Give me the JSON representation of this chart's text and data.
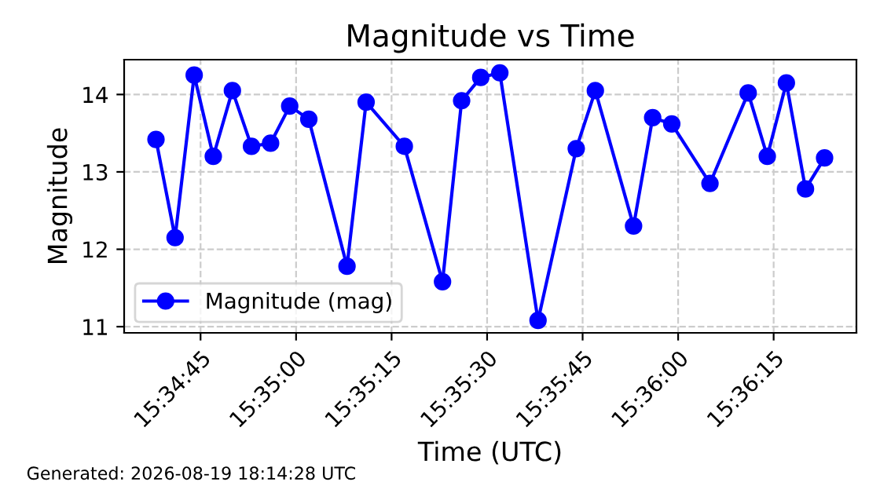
{
  "chart_data": {
    "type": "line",
    "title": "Magnitude vs Time",
    "xlabel": "Time (UTC)",
    "ylabel": "Magnitude",
    "x": [
      "2026-08-19T15:34:38",
      "2026-08-19T15:34:41",
      "2026-08-19T15:34:44",
      "2026-08-19T15:34:47",
      "2026-08-19T15:34:50",
      "2026-08-19T15:34:53",
      "2026-08-19T15:34:56",
      "2026-08-19T15:34:59",
      "2026-08-19T15:35:02",
      "2026-08-19T15:35:08",
      "2026-08-19T15:35:11",
      "2026-08-19T15:35:17",
      "2026-08-19T15:35:23",
      "2026-08-19T15:35:26",
      "2026-08-19T15:35:29",
      "2026-08-19T15:35:32",
      "2026-08-19T15:35:38",
      "2026-08-19T15:35:44",
      "2026-08-19T15:35:47",
      "2026-08-19T15:35:53",
      "2026-08-19T15:35:56",
      "2026-08-19T15:35:59",
      "2026-08-19T15:36:05",
      "2026-08-19T15:36:11",
      "2026-08-19T15:36:14",
      "2026-08-19T15:36:17",
      "2026-08-19T15:36:20",
      "2026-08-19T15:36:23"
    ],
    "series": [
      {
        "name": "Magnitude (mag)",
        "color": "#0000ff",
        "values": [
          13.42,
          12.15,
          14.25,
          13.2,
          14.05,
          13.33,
          13.37,
          13.85,
          13.68,
          11.78,
          13.9,
          13.33,
          11.58,
          13.92,
          14.22,
          14.28,
          11.08,
          13.3,
          14.05,
          12.3,
          13.7,
          13.62,
          12.85,
          14.02,
          13.2,
          14.15,
          12.78,
          13.18
        ]
      }
    ],
    "xlim": [
      "2026-08-19T15:34:33",
      "2026-08-19T15:36:28"
    ],
    "xticks": [
      {
        "value": "2026-08-19T15:34:45",
        "label": "15:34:45"
      },
      {
        "value": "2026-08-19T15:35:00",
        "label": "15:35:00"
      },
      {
        "value": "2026-08-19T15:35:15",
        "label": "15:35:15"
      },
      {
        "value": "2026-08-19T15:35:30",
        "label": "15:35:30"
      },
      {
        "value": "2026-08-19T15:35:45",
        "label": "15:35:45"
      },
      {
        "value": "2026-08-19T15:36:00",
        "label": "15:36:00"
      },
      {
        "value": "2026-08-19T15:36:15",
        "label": "15:36:15"
      }
    ],
    "ylim": [
      10.92,
      14.45
    ],
    "yticks": [
      11,
      12,
      13,
      14
    ],
    "grid": true,
    "legend": "bottom left",
    "marker": "circle",
    "line_style": "solid",
    "annotations": [
      "Generated: 2026-08-19 18:14:28 UTC"
    ]
  }
}
